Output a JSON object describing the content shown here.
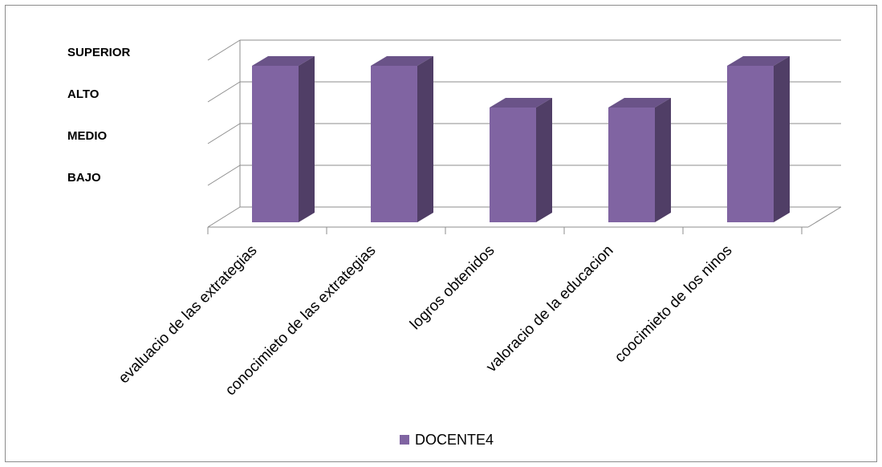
{
  "chart_data": {
    "type": "bar",
    "title": "",
    "xlabel": "",
    "ylabel": "",
    "categories": [
      "evaluacio de las extrategias",
      "conocimieto de las extrategias",
      "logros obtenidos",
      "valoracio de la educacion",
      "coocimieto de los ninos"
    ],
    "y_levels": [
      "BAJO",
      "MEDIO",
      "ALTO",
      "SUPERIOR"
    ],
    "series": [
      {
        "name": "DOCENTE4",
        "values": [
          4,
          4,
          3,
          3,
          4
        ]
      }
    ],
    "ylim": [
      0,
      4
    ],
    "grid": true,
    "legend_position": "bottom",
    "style": "3d-column",
    "colors": {
      "bar_front": "#8064A2",
      "bar_side": "#503E66",
      "bar_top": "#6A5388",
      "grid": "#8c8c8c"
    }
  }
}
